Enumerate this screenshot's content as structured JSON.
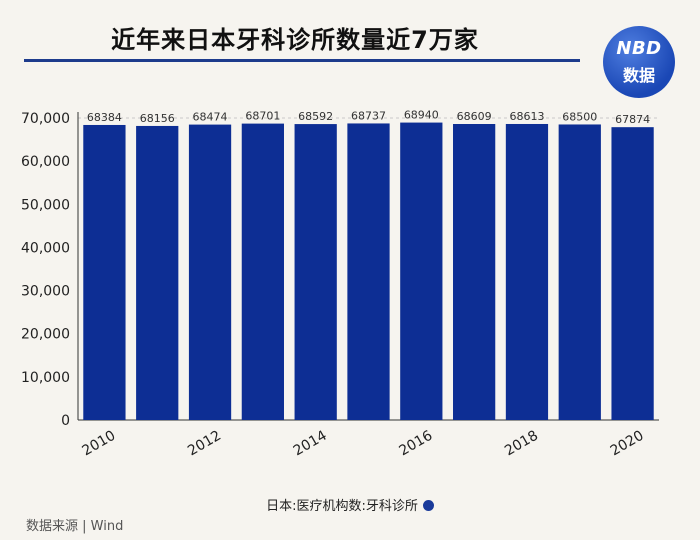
{
  "header": {
    "title": "近年来日本牙科诊所数量近7万家",
    "logo_line1": "NBD",
    "logo_line2": "数据"
  },
  "footer": {
    "source": "数据来源 | Wind"
  },
  "colors": {
    "bar": "#0d2e94",
    "accent": "#1d3b8c"
  },
  "chart_data": {
    "type": "bar",
    "title": "近年来日本牙科诊所数量近7万家",
    "categories": [
      "2010",
      "2011",
      "2012",
      "2013",
      "2014",
      "2015",
      "2016",
      "2017",
      "2018",
      "2019",
      "2020"
    ],
    "x_tick_labels": [
      "2010",
      "2012",
      "2014",
      "2016",
      "2018",
      "2020"
    ],
    "series": [
      {
        "name": "日本:医疗机构数:牙科诊所",
        "values": [
          68384,
          68156,
          68474,
          68701,
          68592,
          68737,
          68940,
          68609,
          68613,
          68500,
          67874
        ]
      }
    ],
    "ylim": [
      0,
      70000
    ],
    "y_ticks": [
      0,
      10000,
      20000,
      30000,
      40000,
      50000,
      60000,
      70000
    ],
    "y_tick_labels": [
      "0",
      "10,000",
      "20,000",
      "30,000",
      "40,000",
      "50,000",
      "60,000",
      "70,000"
    ],
    "xlabel": "",
    "ylabel": "",
    "legend": "bottom",
    "legend_label": "日本:医疗机构数:牙科诊所"
  }
}
